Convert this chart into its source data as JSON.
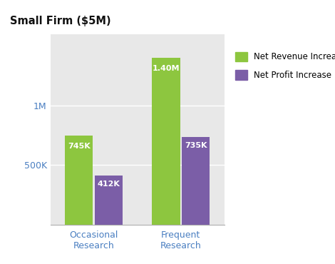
{
  "title": "Small Firm ($5M)",
  "categories": [
    "Occasional\nResearch",
    "Frequent\nResearch"
  ],
  "revenue_values": [
    745000,
    1400000
  ],
  "profit_values": [
    412000,
    735000
  ],
  "revenue_labels": [
    "745K",
    "1.40M"
  ],
  "profit_labels": [
    "412K",
    "735K"
  ],
  "revenue_color": "#8dc63f",
  "profit_color": "#7b5ea7",
  "background_color": "#e8e8e8",
  "yticks": [
    0,
    500000,
    1000000
  ],
  "ytick_labels": [
    "",
    "500K",
    "1M"
  ],
  "ylim": [
    0,
    1600000
  ],
  "legend_revenue": "Net Revenue Increase",
  "legend_profit": "Net Profit Increase",
  "bar_width": 0.32,
  "title_fontsize": 10.5,
  "label_fontsize": 8,
  "tick_fontsize": 9,
  "legend_fontsize": 8.5,
  "xlabel_color": "#4a7fc1",
  "ytick_color": "#4a7fc1"
}
